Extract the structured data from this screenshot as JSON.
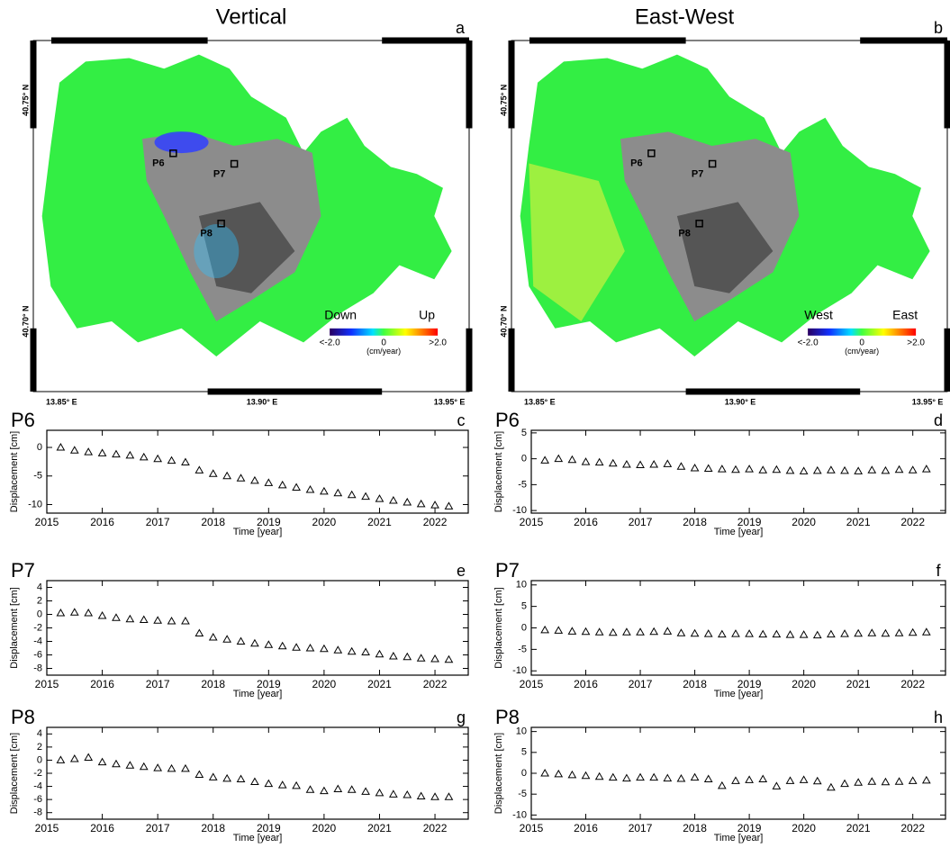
{
  "maps": [
    {
      "title": "Vertical",
      "panel": "a",
      "lat_labels": [
        "40.75° N",
        "40.70° N"
      ],
      "lon_labels": [
        "13.85° E",
        "13.90° E",
        "13.95° E"
      ],
      "points": [
        "P6",
        "P7",
        "P8"
      ],
      "legend": {
        "low": "Down",
        "high": "Up",
        "min": "<-2.0",
        "mid": "0",
        "max": ">2.0",
        "unit": "(cm/year)"
      }
    },
    {
      "title": "East-West",
      "panel": "b",
      "lat_labels": [
        "40.75° N",
        "40.70° N"
      ],
      "lon_labels": [
        "13.85° E",
        "13.90° E",
        "13.95° E"
      ],
      "points": [
        "P6",
        "P7",
        "P8"
      ],
      "legend": {
        "low": "West",
        "high": "East",
        "min": "<-2.0",
        "mid": "0",
        "max": ">2.0",
        "unit": "(cm/year)"
      }
    }
  ],
  "chart_data": [
    {
      "type": "scatter",
      "title": "P6",
      "panel": "c",
      "x_label": "Time [year]",
      "y_label": "Displacement [cm]",
      "color": "#000000",
      "xlim": [
        2015,
        2022.6
      ],
      "xticks": [
        2015,
        2016,
        2017,
        2018,
        2019,
        2020,
        2021,
        2022
      ],
      "ylim": [
        -11.5,
        3
      ],
      "yticks": [
        0,
        -5,
        -10
      ],
      "x": [
        2015.25,
        2015.5,
        2015.75,
        2016,
        2016.25,
        2016.5,
        2016.75,
        2017,
        2017.25,
        2017.5,
        2017.75,
        2018,
        2018.25,
        2018.5,
        2018.75,
        2019,
        2019.25,
        2019.5,
        2019.75,
        2020,
        2020.25,
        2020.5,
        2020.75,
        2021,
        2021.25,
        2021.5,
        2021.75,
        2022,
        2022.25
      ],
      "values": [
        0,
        -0.5,
        -0.8,
        -1.0,
        -1.2,
        -1.4,
        -1.7,
        -2.0,
        -2.3,
        -2.6,
        -4.0,
        -4.6,
        -5.0,
        -5.4,
        -5.8,
        -6.2,
        -6.6,
        -7.0,
        -7.4,
        -7.7,
        -8.0,
        -8.3,
        -8.6,
        -9.0,
        -9.3,
        -9.6,
        -9.9,
        -10.1,
        -10.3
      ]
    },
    {
      "type": "scatter",
      "title": "P6",
      "panel": "d",
      "x_label": "Time [year]",
      "y_label": "Displacement [cm]",
      "color": "#000000",
      "xlim": [
        2015,
        2022.6
      ],
      "xticks": [
        2015,
        2016,
        2017,
        2018,
        2019,
        2020,
        2021,
        2022
      ],
      "ylim": [
        -10.5,
        5.5
      ],
      "yticks": [
        5,
        0,
        -5,
        -10
      ],
      "x": [
        2015.25,
        2015.5,
        2015.75,
        2016,
        2016.25,
        2016.5,
        2016.75,
        2017,
        2017.25,
        2017.5,
        2017.75,
        2018,
        2018.25,
        2018.5,
        2018.75,
        2019,
        2019.25,
        2019.5,
        2019.75,
        2020,
        2020.25,
        2020.5,
        2020.75,
        2021,
        2021.25,
        2021.5,
        2021.75,
        2022,
        2022.25
      ],
      "values": [
        -0.3,
        0,
        -0.2,
        -0.6,
        -0.7,
        -0.9,
        -1.1,
        -1.2,
        -1.1,
        -1.0,
        -1.5,
        -1.8,
        -1.9,
        -2.0,
        -2.1,
        -2.0,
        -2.2,
        -2.1,
        -2.3,
        -2.4,
        -2.3,
        -2.2,
        -2.3,
        -2.4,
        -2.2,
        -2.3,
        -2.1,
        -2.2,
        -2.0
      ]
    },
    {
      "type": "scatter",
      "title": "P7",
      "panel": "e",
      "x_label": "Time [year]",
      "y_label": "Displacement [cm]",
      "color": "#000000",
      "xlim": [
        2015,
        2022.6
      ],
      "xticks": [
        2015,
        2016,
        2017,
        2018,
        2019,
        2020,
        2021,
        2022
      ],
      "ylim": [
        -9,
        5
      ],
      "yticks": [
        4,
        2,
        0,
        -2,
        -4,
        -6,
        -8
      ],
      "x": [
        2015.25,
        2015.5,
        2015.75,
        2016,
        2016.25,
        2016.5,
        2016.75,
        2017,
        2017.25,
        2017.5,
        2017.75,
        2018,
        2018.25,
        2018.5,
        2018.75,
        2019,
        2019.25,
        2019.5,
        2019.75,
        2020,
        2020.25,
        2020.5,
        2020.75,
        2021,
        2021.25,
        2021.5,
        2021.75,
        2022,
        2022.25
      ],
      "values": [
        0.2,
        0.3,
        0.2,
        -0.2,
        -0.5,
        -0.7,
        -0.8,
        -0.9,
        -1.0,
        -1.0,
        -2.8,
        -3.4,
        -3.7,
        -4.0,
        -4.3,
        -4.5,
        -4.7,
        -4.9,
        -5.0,
        -5.1,
        -5.3,
        -5.5,
        -5.6,
        -5.9,
        -6.2,
        -6.3,
        -6.5,
        -6.6,
        -6.7
      ]
    },
    {
      "type": "scatter",
      "title": "P7",
      "panel": "f",
      "x_label": "Time [year]",
      "y_label": "Displacement [cm]",
      "color": "#000000",
      "xlim": [
        2015,
        2022.6
      ],
      "xticks": [
        2015,
        2016,
        2017,
        2018,
        2019,
        2020,
        2021,
        2022
      ],
      "ylim": [
        -11,
        11
      ],
      "yticks": [
        10,
        5,
        0,
        -5,
        -10
      ],
      "x": [
        2015.25,
        2015.5,
        2015.75,
        2016,
        2016.25,
        2016.5,
        2016.75,
        2017,
        2017.25,
        2017.5,
        2017.75,
        2018,
        2018.25,
        2018.5,
        2018.75,
        2019,
        2019.25,
        2019.5,
        2019.75,
        2020,
        2020.25,
        2020.5,
        2020.75,
        2021,
        2021.25,
        2021.5,
        2021.75,
        2022,
        2022.25
      ],
      "values": [
        -0.5,
        -0.6,
        -0.8,
        -0.9,
        -1.0,
        -1.1,
        -1.0,
        -1.0,
        -0.9,
        -0.8,
        -1.2,
        -1.3,
        -1.4,
        -1.5,
        -1.4,
        -1.4,
        -1.5,
        -1.5,
        -1.6,
        -1.6,
        -1.7,
        -1.5,
        -1.4,
        -1.3,
        -1.2,
        -1.3,
        -1.2,
        -1.1,
        -1.0
      ]
    },
    {
      "type": "scatter",
      "title": "P8",
      "panel": "g",
      "x_label": "Time [year]",
      "y_label": "Displacement [cm]",
      "color": "#000000",
      "xlim": [
        2015,
        2022.6
      ],
      "xticks": [
        2015,
        2016,
        2017,
        2018,
        2019,
        2020,
        2021,
        2022
      ],
      "ylim": [
        -9,
        5
      ],
      "yticks": [
        4,
        2,
        0,
        -2,
        -4,
        -6,
        -8
      ],
      "x": [
        2015.25,
        2015.5,
        2015.75,
        2016,
        2016.25,
        2016.5,
        2016.75,
        2017,
        2017.25,
        2017.5,
        2017.75,
        2018,
        2018.25,
        2018.5,
        2018.75,
        2019,
        2019.25,
        2019.5,
        2019.75,
        2020,
        2020.25,
        2020.5,
        2020.75,
        2021,
        2021.25,
        2021.5,
        2021.75,
        2022,
        2022.25
      ],
      "values": [
        0,
        0.2,
        0.4,
        -0.3,
        -0.6,
        -0.8,
        -1.0,
        -1.2,
        -1.3,
        -1.3,
        -2.2,
        -2.6,
        -2.8,
        -2.9,
        -3.3,
        -3.6,
        -3.8,
        -3.9,
        -4.5,
        -4.7,
        -4.4,
        -4.5,
        -4.8,
        -5.0,
        -5.2,
        -5.3,
        -5.5,
        -5.6,
        -5.6
      ]
    },
    {
      "type": "scatter",
      "title": "P8",
      "panel": "h",
      "x_label": "Time [year]",
      "y_label": "Displacement [cm]",
      "color": "#000000",
      "xlim": [
        2015,
        2022.6
      ],
      "xticks": [
        2015,
        2016,
        2017,
        2018,
        2019,
        2020,
        2021,
        2022
      ],
      "ylim": [
        -11,
        11
      ],
      "yticks": [
        10,
        5,
        0,
        -5,
        -10
      ],
      "x": [
        2015.25,
        2015.5,
        2015.75,
        2016,
        2016.25,
        2016.5,
        2016.75,
        2017,
        2017.25,
        2017.5,
        2017.75,
        2018,
        2018.25,
        2018.5,
        2018.75,
        2019,
        2019.25,
        2019.5,
        2019.75,
        2020,
        2020.25,
        2020.5,
        2020.75,
        2021,
        2021.25,
        2021.5,
        2021.75,
        2022,
        2022.25
      ],
      "values": [
        0,
        -0.2,
        -0.4,
        -0.6,
        -0.8,
        -1.0,
        -1.2,
        -1.0,
        -1.0,
        -1.2,
        -1.3,
        -1.0,
        -1.4,
        -3.0,
        -1.8,
        -1.6,
        -1.4,
        -3.1,
        -1.8,
        -1.6,
        -1.9,
        -3.4,
        -2.5,
        -2.2,
        -2.0,
        -2.1,
        -2.0,
        -1.8,
        -1.7
      ]
    }
  ]
}
